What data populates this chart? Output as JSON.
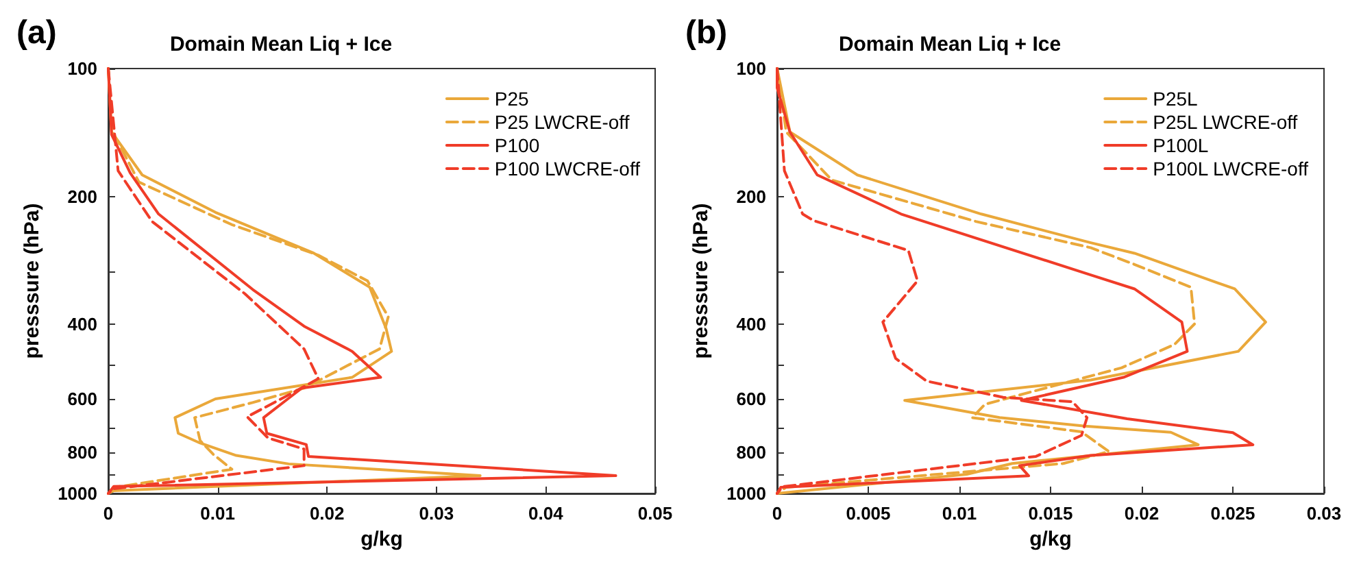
{
  "chart_data": [
    {
      "type": "line",
      "title": "Domain Mean Liq + Ice",
      "xlabel": "g/kg",
      "ylabel": "presssure (hPa)",
      "annotations": [
        "(a)"
      ],
      "log": "y",
      "xlim": [
        0,
        0.05
      ],
      "xticks": [
        0,
        0.01,
        0.02,
        0.03,
        0.04,
        0.05
      ],
      "ylim": [
        1000,
        100
      ],
      "yticks": [
        100,
        200,
        {
          "value": 300,
          "label": null
        },
        400,
        {
          "value": 500,
          "label": null
        },
        600,
        {
          "value": 700,
          "label": null
        },
        800,
        {
          "value": 900,
          "label": null
        },
        1000
      ],
      "grid": false,
      "legend": "top right",
      "marker": "none",
      "series": [
        {
          "name": "P25",
          "color": "#eaa83a",
          "line_style": "solid",
          "x": [
            0,
            0.0003,
            0.0031,
            0.0098,
            0.0188,
            0.0239,
            0.0254,
            0.0259,
            0.0223,
            0.0098,
            0.0061,
            0.0064,
            0.0084,
            0.0117,
            0.0165,
            0.034,
            0.0005,
            0
          ],
          "values": [
            100,
            141,
            178,
            218,
            272,
            327,
            409,
            463,
            533,
            599,
            663,
            722,
            761,
            814,
            852,
            908,
            985,
            1000
          ]
        },
        {
          "name": "P25 LWCRE-off",
          "color": "#eaa83a",
          "line_style": "dashed",
          "x": [
            0,
            0.0004,
            0.0028,
            0.0113,
            0.0192,
            0.0237,
            0.0256,
            0.0248,
            0.0179,
            0.0132,
            0.0079,
            0.0084,
            0.0096,
            0.0113,
            0.0005,
            0
          ],
          "values": [
            100,
            141,
            185,
            233,
            275,
            316,
            384,
            457,
            565,
            611,
            663,
            751,
            809,
            877,
            968,
            1000
          ]
        },
        {
          "name": "P100",
          "color": "#f03c28",
          "line_style": "solid",
          "x": [
            0,
            0.0003,
            0.002,
            0.0046,
            0.0132,
            0.0179,
            0.0223,
            0.0249,
            0.0177,
            0.0166,
            0.0142,
            0.0145,
            0.0181,
            0.0183,
            0.0464,
            0.0005,
            0
          ],
          "values": [
            100,
            143,
            176,
            220,
            331,
            404,
            463,
            533,
            565,
            594,
            663,
            722,
            767,
            818,
            908,
            963,
            1000
          ]
        },
        {
          "name": "P100 LWCRE-off",
          "color": "#f03c28",
          "line_style": "dashed",
          "x": [
            0,
            0.0009,
            0.004,
            0.0125,
            0.0179,
            0.0192,
            0.0171,
            0.0127,
            0.0146,
            0.0179,
            0.0179,
            0.0005,
            0
          ],
          "values": [
            100,
            174,
            229,
            339,
            457,
            537,
            575,
            660,
            740,
            786,
            860,
            975,
            1000
          ]
        }
      ]
    },
    {
      "type": "line",
      "title": "Domain Mean Liq + Ice",
      "xlabel": "g/kg",
      "ylabel": "presssure (hPa)",
      "annotations": [
        "(b)"
      ],
      "log": "y",
      "xlim": [
        0,
        0.03
      ],
      "xticks": [
        0,
        0.005,
        0.01,
        0.015,
        0.02,
        0.025,
        0.03
      ],
      "ylim": [
        1000,
        100
      ],
      "yticks": [
        100,
        200,
        {
          "value": 300,
          "label": null
        },
        400,
        {
          "value": 500,
          "label": null
        },
        600,
        {
          "value": 700,
          "label": null
        },
        800,
        {
          "value": 900,
          "label": null
        },
        1000
      ],
      "grid": false,
      "legend": "top right",
      "marker": "none",
      "series": [
        {
          "name": "P25L",
          "color": "#eaa83a",
          "line_style": "solid",
          "x": [
            0,
            0.0007,
            0.0044,
            0.0112,
            0.0172,
            0.0196,
            0.0251,
            0.0268,
            0.0253,
            0.0172,
            0.007,
            0.0122,
            0.0169,
            0.0216,
            0.0231,
            0.0129,
            0.0104,
            0
          ],
          "values": [
            100,
            141,
            178,
            220,
            257,
            272,
            330,
            395,
            463,
            541,
            604,
            663,
            694,
            718,
            768,
            850,
            901,
            1000
          ]
        },
        {
          "name": "P25L LWCRE-off",
          "color": "#eaa83a",
          "line_style": "dashed",
          "x": [
            0,
            0.0005,
            0.003,
            0.0109,
            0.0172,
            0.0196,
            0.0227,
            0.0229,
            0.0218,
            0.0189,
            0.0132,
            0.0114,
            0.0107,
            0.0167,
            0.0182,
            0.0157,
            0.0005,
            0
          ],
          "values": [
            100,
            141,
            183,
            229,
            264,
            289,
            327,
            399,
            446,
            506,
            588,
            617,
            663,
            716,
            797,
            850,
            967,
            1000
          ]
        },
        {
          "name": "P100L",
          "color": "#f03c28",
          "line_style": "solid",
          "x": [
            0,
            0,
            0.0007,
            0.0022,
            0.0068,
            0.0172,
            0.0196,
            0.0222,
            0.0225,
            0.019,
            0.0134,
            0.0192,
            0.025,
            0.0261,
            0.0172,
            0.0133,
            0.0138,
            0.0002,
            0
          ],
          "values": [
            100,
            111,
            141,
            178,
            220,
            306,
            330,
            395,
            463,
            533,
            604,
            667,
            719,
            768,
            814,
            860,
            909,
            967,
            1000
          ]
        },
        {
          "name": "P100L LWCRE-off",
          "color": "#f03c28",
          "line_style": "dashed",
          "x": [
            0,
            0.0004,
            0.0014,
            0.002,
            0.0072,
            0.0077,
            0.0058,
            0.0065,
            0.0082,
            0.0124,
            0.0162,
            0.017,
            0.0167,
            0.0142,
            0.0003,
            0
          ],
          "values": [
            100,
            174,
            220,
            228,
            268,
            316,
            395,
            481,
            544,
            594,
            608,
            663,
            730,
            818,
            964,
            1000
          ]
        }
      ]
    }
  ]
}
